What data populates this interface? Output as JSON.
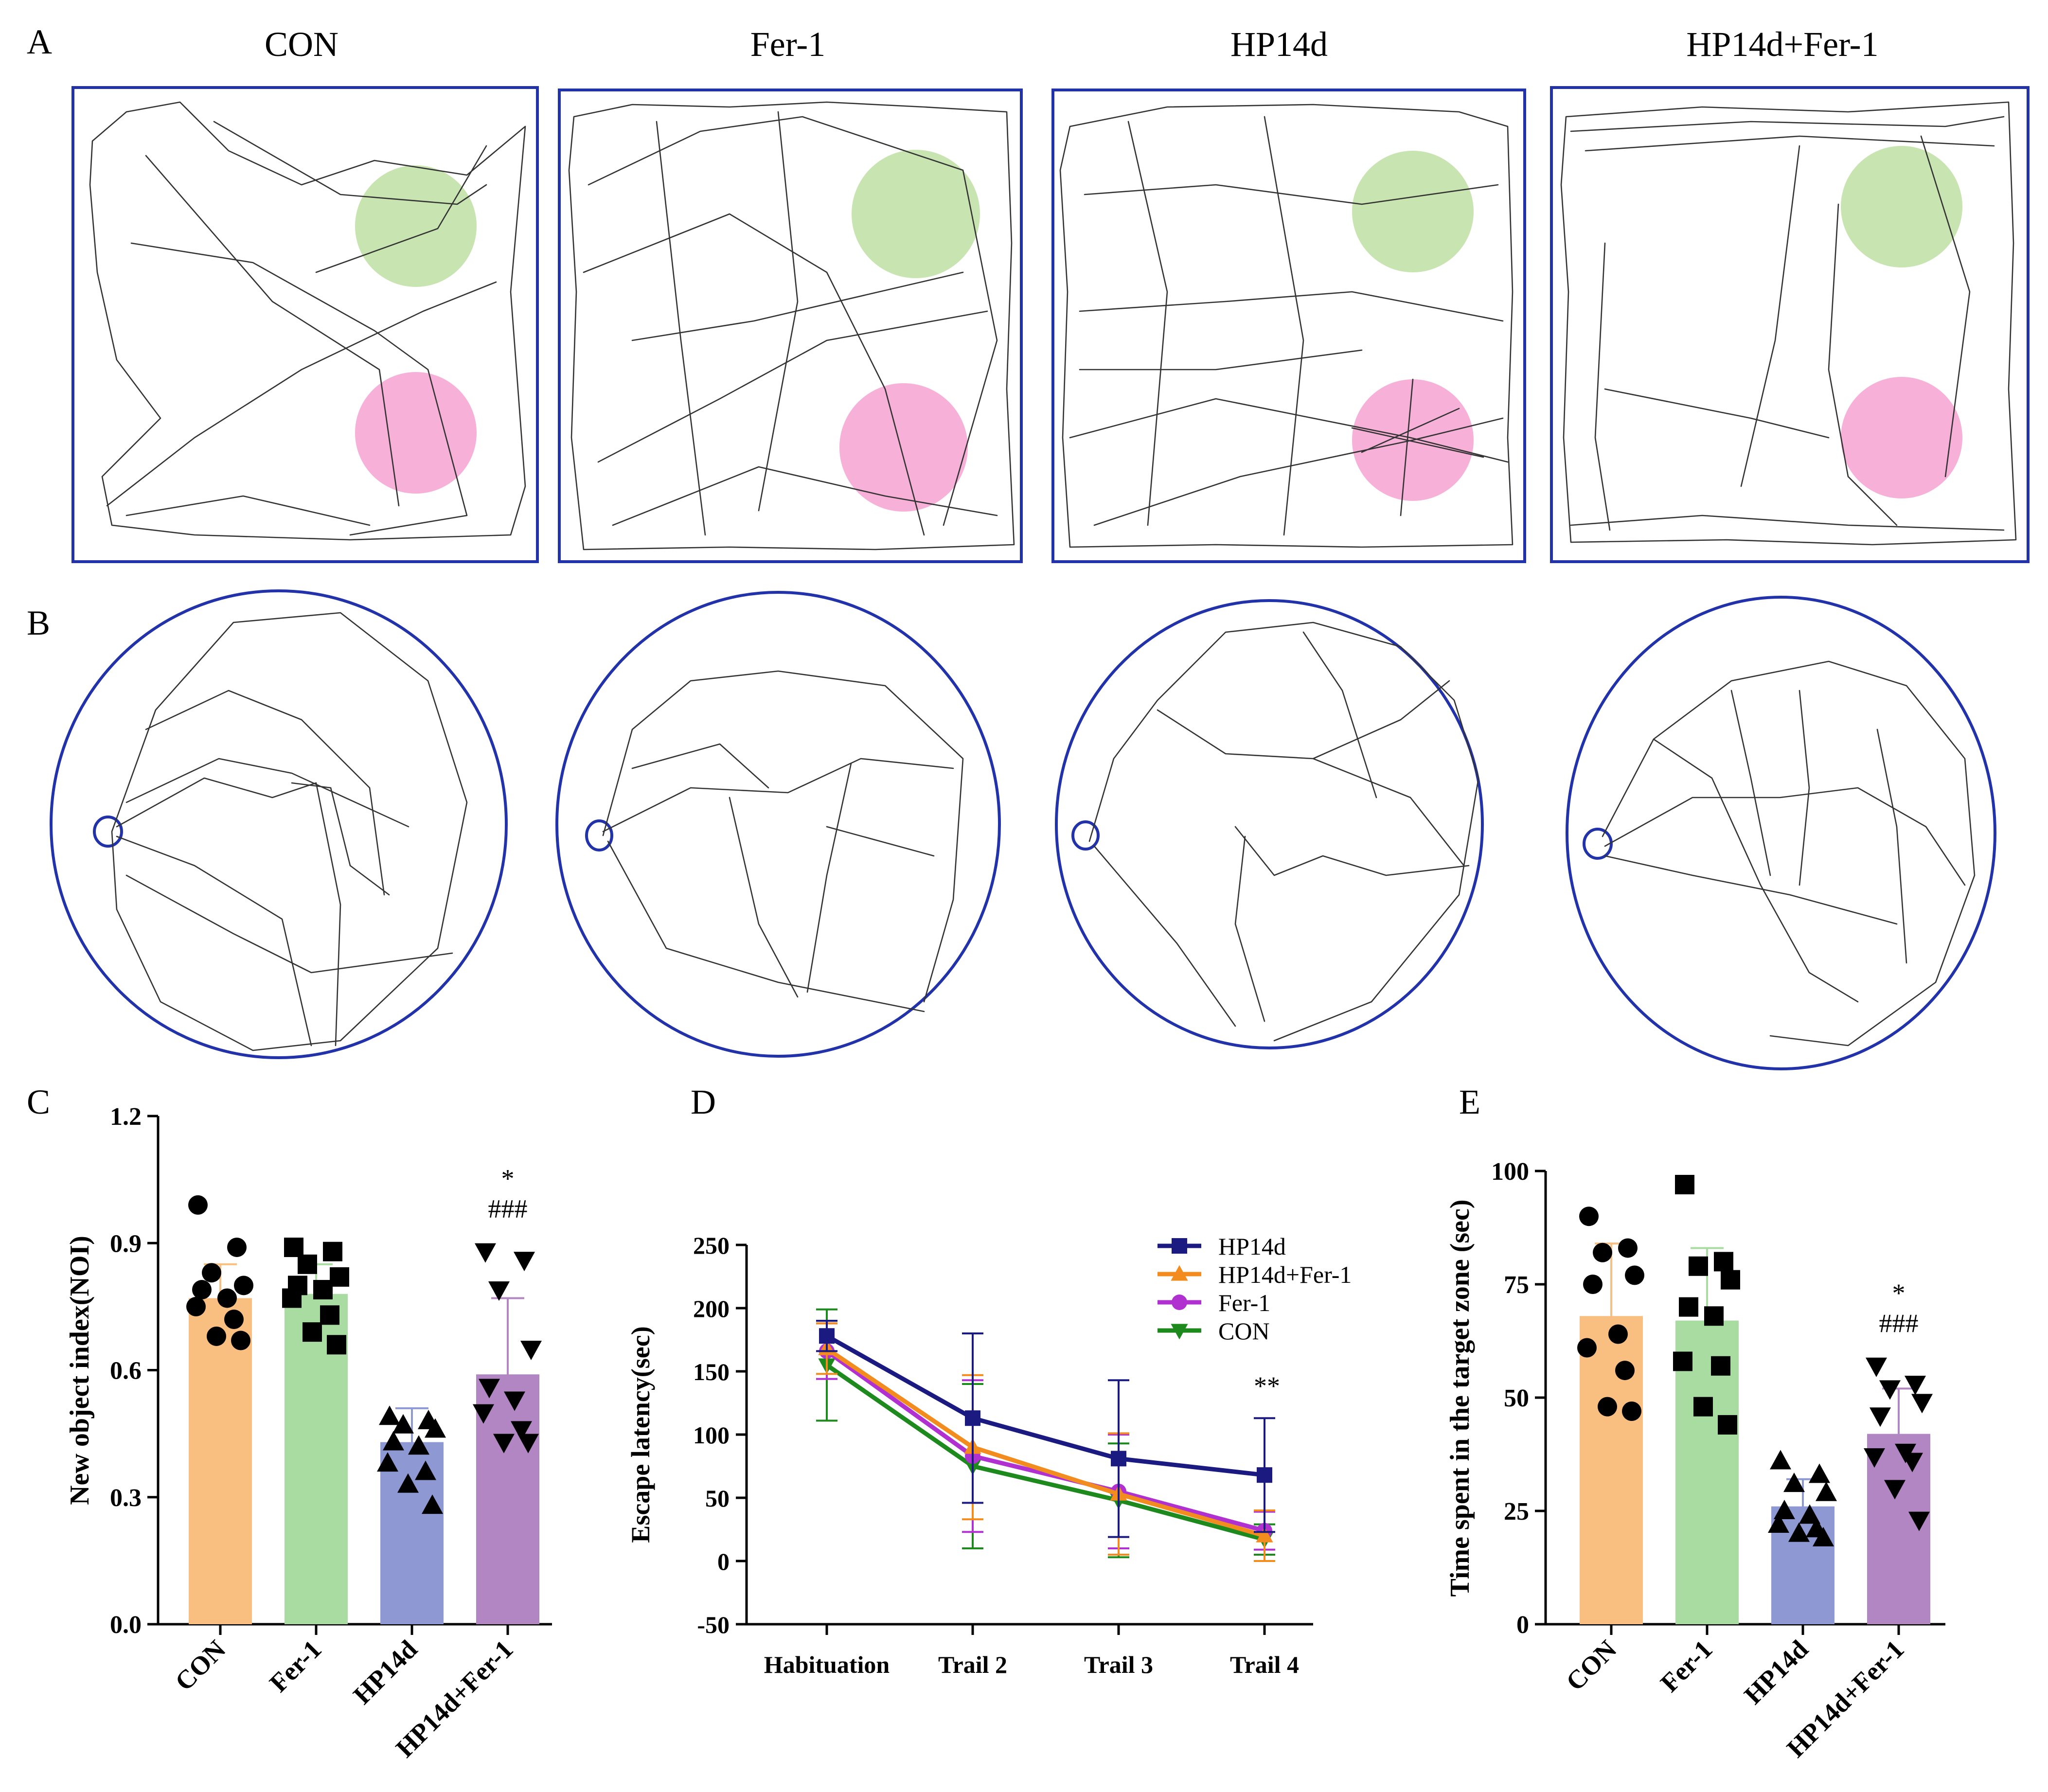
{
  "panel_letters": [
    "A",
    "B",
    "C",
    "D",
    "E"
  ],
  "groups": [
    "CON",
    "Fer-1",
    "HP14d",
    "HP14d+Fer-1"
  ],
  "colors": {
    "CON": "#f9bf80",
    "Fer-1": "#a8dca0",
    "HP14d": "#8e98d2",
    "HP14d+Fer-1": "#b186c2",
    "HP14d_line": "#1a1a80",
    "HP14d+Fer-1_line": "#f28c1e",
    "Fer-1_line": "#b030d0",
    "CON_line": "#1e8a1e",
    "arena_border": "#2233aa",
    "green_object": "#c8e4b0",
    "pink_object": "#f7b0d8"
  },
  "chart_data": [
    {
      "panel": "C",
      "type": "bar",
      "categories": [
        "CON",
        "Fer-1",
        "HP14d",
        "HP14d+Fer-1"
      ],
      "values": [
        0.77,
        0.78,
        0.43,
        0.59
      ],
      "errors": [
        0.08,
        0.07,
        0.08,
        0.18
      ],
      "points": [
        [
          0.99,
          0.89,
          0.83,
          0.8,
          0.79,
          0.77,
          0.75,
          0.72,
          0.68,
          0.67
        ],
        [
          0.89,
          0.88,
          0.85,
          0.82,
          0.8,
          0.79,
          0.77,
          0.73,
          0.69,
          0.66
        ],
        [
          0.49,
          0.48,
          0.47,
          0.46,
          0.43,
          0.42,
          0.38,
          0.36,
          0.33,
          0.28
        ],
        [
          0.88,
          0.86,
          0.79,
          0.65,
          0.56,
          0.53,
          0.5,
          0.46,
          0.43,
          0.43
        ]
      ],
      "markers": [
        "circle",
        "square",
        "triangle-up",
        "triangle-down"
      ],
      "annotations": [
        {
          "category": "HP14d+Fer-1",
          "lines": [
            "*",
            "###"
          ]
        }
      ],
      "title": "",
      "xlabel": "",
      "ylabel": "New object index(NOI)",
      "ylim": [
        0,
        1.2
      ],
      "yticks": [
        "0.0",
        "0.3",
        "0.6",
        "0.9",
        "1.2"
      ]
    },
    {
      "panel": "D",
      "type": "line",
      "categories": [
        "Habituation",
        "Trail 2",
        "Trail 3",
        "Trail 4"
      ],
      "series": [
        {
          "name": "HP14d",
          "marker": "square",
          "values": [
            178,
            113,
            81,
            68
          ],
          "errors": [
            12,
            67,
            62,
            45
          ]
        },
        {
          "name": "HP14d+Fer-1",
          "marker": "triangle-up",
          "values": [
            168,
            90,
            53,
            20
          ],
          "errors": [
            20,
            57,
            48,
            20
          ]
        },
        {
          "name": "Fer-1",
          "marker": "circle",
          "values": [
            166,
            83,
            55,
            24
          ],
          "errors": [
            22,
            60,
            45,
            15
          ]
        },
        {
          "name": "CON",
          "marker": "triangle-down",
          "values": [
            155,
            75,
            48,
            17
          ],
          "errors": [
            44,
            65,
            45,
            12
          ]
        }
      ],
      "annotations": [
        {
          "category": "Trail 4",
          "text": "**"
        }
      ],
      "xlabel": "",
      "ylabel": "Escape latency(sec)",
      "ylim": [
        -50,
        250
      ],
      "yticks": [
        "-50",
        "0",
        "50",
        "100",
        "150",
        "200",
        "250"
      ]
    },
    {
      "panel": "E",
      "type": "bar",
      "categories": [
        "CON",
        "Fer-1",
        "HP14d",
        "HP14d+Fer-1"
      ],
      "values": [
        68,
        67,
        26,
        42
      ],
      "errors": [
        16,
        16,
        6,
        10
      ],
      "points": [
        [
          90,
          83,
          82,
          77,
          75,
          64,
          61,
          56,
          48,
          47
        ],
        [
          97,
          80,
          79,
          76,
          70,
          68,
          58,
          57,
          48,
          44
        ],
        [
          36,
          33,
          31,
          29,
          25,
          24,
          22,
          21,
          20,
          19
        ],
        [
          57,
          53,
          52,
          49,
          46,
          38,
          37,
          36,
          30,
          23
        ]
      ],
      "markers": [
        "circle",
        "square",
        "triangle-up",
        "triangle-down"
      ],
      "annotations": [
        {
          "category": "HP14d+Fer-1",
          "lines": [
            "*",
            "###"
          ]
        }
      ],
      "xlabel": "",
      "ylabel": "Time spent in the target zone (sec)",
      "ylim": [
        0,
        100
      ],
      "yticks": [
        "0",
        "25",
        "50",
        "75",
        "100"
      ]
    }
  ]
}
